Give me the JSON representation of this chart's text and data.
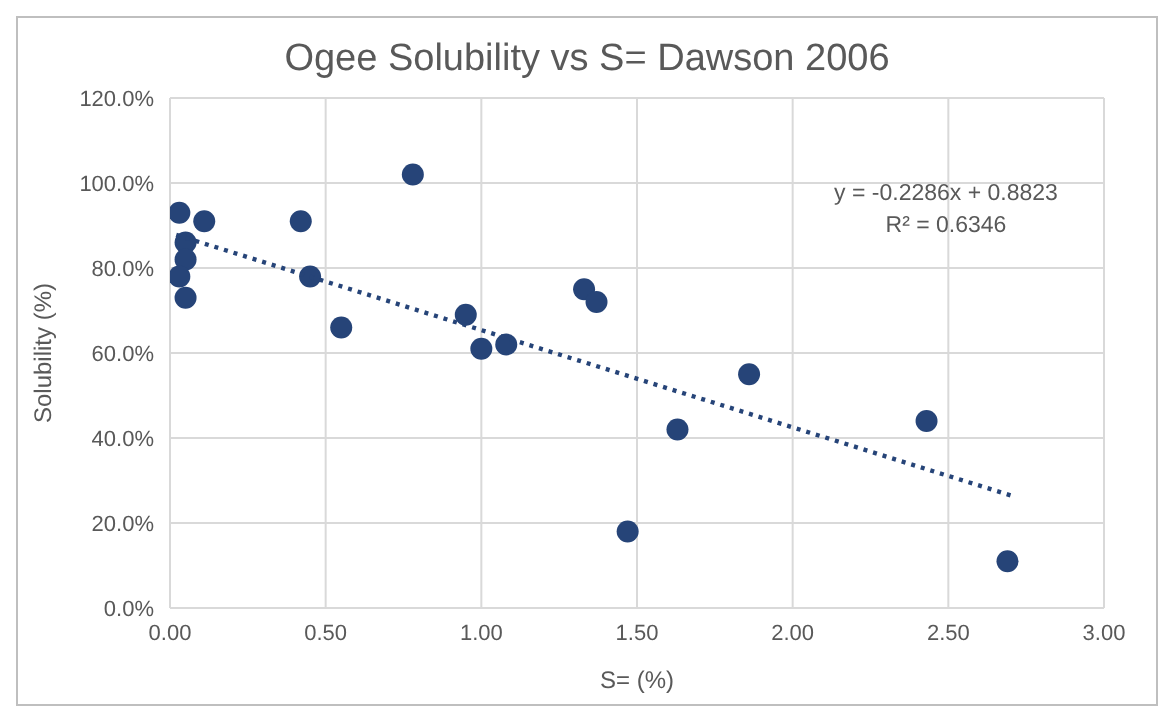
{
  "chart_data": {
    "type": "scatter",
    "title": "Ogee Solubility vs S= Dawson 2006",
    "xlabel": "S= (%)",
    "ylabel": "Solubility (%)",
    "series": [
      {
        "marker": "circle",
        "color": "#264478",
        "x": [
          0.03,
          0.11,
          0.05,
          0.05,
          0.03,
          0.05,
          0.42,
          0.45,
          0.55,
          0.78,
          0.95,
          1.0,
          1.08,
          1.33,
          1.37,
          1.47,
          1.63,
          1.86,
          2.43,
          2.69
        ],
        "values": [
          93,
          91,
          86,
          82,
          78,
          73,
          91,
          78,
          66,
          102,
          69,
          61,
          62,
          75,
          72,
          18,
          42,
          55,
          44,
          11
        ]
      },
      {
        "type": "line",
        "color": "#264478",
        "line_style": "dotted",
        "marker": "none",
        "x": [
          0.02,
          2.7
        ],
        "values": [
          87.8,
          26.5
        ]
      }
    ],
    "xlim": [
      0,
      3
    ],
    "xticks": [
      {
        "value": 0,
        "label": "0.00"
      },
      {
        "value": 0.5,
        "label": "0.50"
      },
      {
        "value": 1,
        "label": "1.00"
      },
      {
        "value": 1.5,
        "label": "1.50"
      },
      {
        "value": 2,
        "label": "2.00"
      },
      {
        "value": 2.5,
        "label": "2.50"
      },
      {
        "value": 3,
        "label": "3.00"
      }
    ],
    "ylim": [
      0,
      120
    ],
    "yticks": [
      {
        "value": 0,
        "label": "0.0%"
      },
      {
        "value": 20,
        "label": "20.0%"
      },
      {
        "value": 40,
        "label": "40.0%"
      },
      {
        "value": 60,
        "label": "60.0%"
      },
      {
        "value": 80,
        "label": "80.0%"
      },
      {
        "value": 100,
        "label": "100.0%"
      },
      {
        "value": 120,
        "label": "120.0%"
      }
    ],
    "grid": true,
    "legend": false,
    "annotations": [
      "y = -0.2286x + 0.8823",
      "R² = 0.6346"
    ]
  }
}
